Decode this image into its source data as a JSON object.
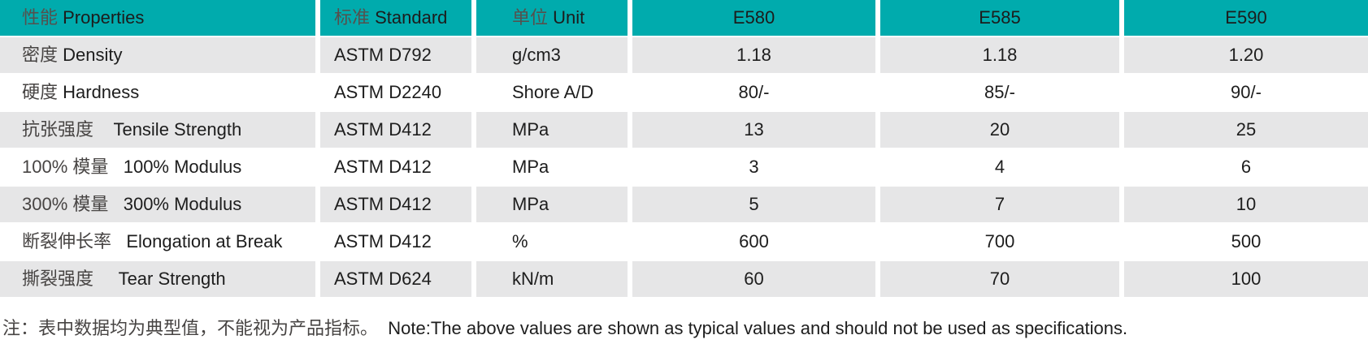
{
  "colors": {
    "header_bg": "#00abad",
    "alt_row_bg": "#e6e6e7",
    "row_bg": "#ffffff",
    "text": "#1d1d1d",
    "chinese_text": "#474443"
  },
  "table": {
    "columns": [
      {
        "id": "property",
        "label_zh": "性能 ",
        "label_en": "Properties"
      },
      {
        "id": "standard",
        "label_zh": "标准 ",
        "label_en": "Standard"
      },
      {
        "id": "unit",
        "label_zh": "单位 ",
        "label_en": "Unit"
      },
      {
        "id": "e580",
        "label_zh": "",
        "label_en": "E580"
      },
      {
        "id": "e585",
        "label_zh": "",
        "label_en": "E585"
      },
      {
        "id": "e590",
        "label_zh": "",
        "label_en": "E590"
      }
    ],
    "rows": [
      {
        "property_zh": "密度 ",
        "property_en": "Density",
        "standard": "ASTM D792",
        "unit": "g/cm3",
        "e580": "1.18",
        "e585": "1.18",
        "e590": "1.20"
      },
      {
        "property_zh": "硬度 ",
        "property_en": "Hardness",
        "standard": "ASTM D2240",
        "unit": "Shore A/D",
        "e580": "80/-",
        "e585": "85/-",
        "e590": "90/-"
      },
      {
        "property_zh": "抗张强度    ",
        "property_en": "Tensile Strength",
        "standard": "ASTM D412",
        "unit": "MPa",
        "e580": "13",
        "e585": "20",
        "e590": "25"
      },
      {
        "property_zh": "100% 模量   ",
        "property_en": "100% Modulus",
        "standard": "ASTM D412",
        "unit": "MPa",
        "e580": "3",
        "e585": "4",
        "e590": "6"
      },
      {
        "property_zh": "300% 模量   ",
        "property_en": "300% Modulus",
        "standard": "ASTM D412",
        "unit": "MPa",
        "e580": "5",
        "e585": "7",
        "e590": "10"
      },
      {
        "property_zh": "断裂伸长率   ",
        "property_en": "Elongation at Break",
        "standard": "ASTM D412",
        "unit": "%",
        "e580": "600",
        "e585": "700",
        "e590": "500"
      },
      {
        "property_zh": "撕裂强度     ",
        "property_en": "Tear Strength",
        "standard": "ASTM D624",
        "unit": "kN/m",
        "e580": "60",
        "e585": "70",
        "e590": "100"
      }
    ]
  },
  "note": {
    "zh": "注：表中数据均为典型值，不能视为产品指标。",
    "en": "  Note:The above values are shown as typical values and should not be used as specifications."
  }
}
